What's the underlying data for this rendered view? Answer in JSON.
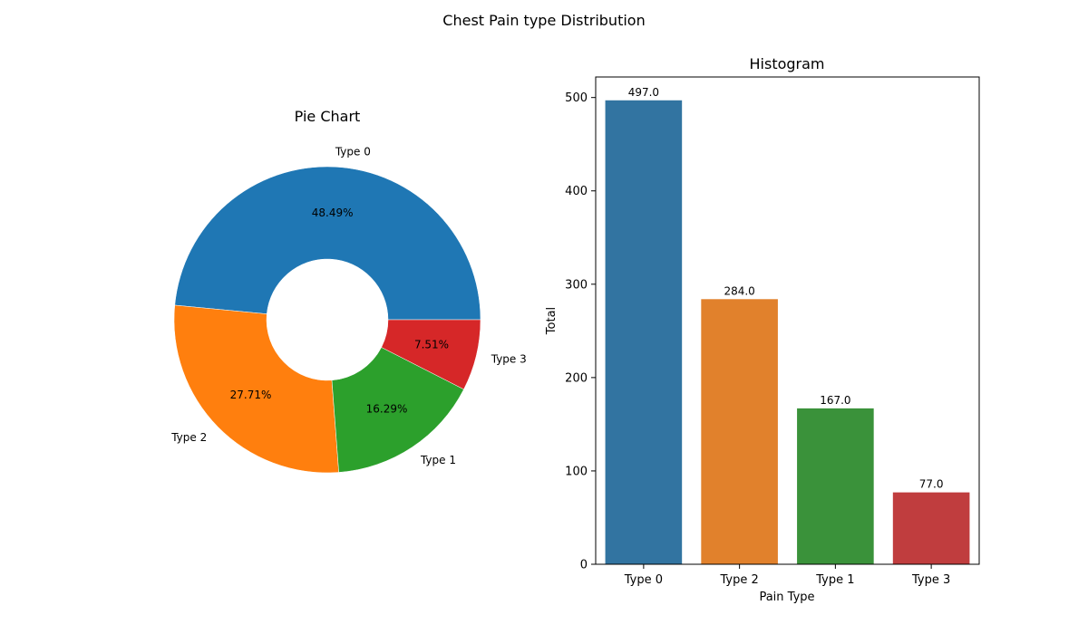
{
  "figure": {
    "title": "Chest Pain type Distribution"
  },
  "chart_data": [
    {
      "type": "pie",
      "title": "Pie Chart",
      "donut": true,
      "labels": [
        "Type 0",
        "Type 2",
        "Type 1",
        "Type 3"
      ],
      "values": [
        497,
        284,
        167,
        77
      ],
      "percent_labels": [
        "48.49%",
        "27.71%",
        "16.29%",
        "7.51%"
      ],
      "colors": [
        "#1f77b4",
        "#ff7f0e",
        "#2ca02c",
        "#d62728"
      ]
    },
    {
      "type": "bar",
      "title": "Histogram",
      "categories": [
        "Type 0",
        "Type 2",
        "Type 1",
        "Type 3"
      ],
      "values": [
        497,
        284,
        167,
        77
      ],
      "value_labels": [
        "497.0",
        "284.0",
        "167.0",
        "77.0"
      ],
      "colors": [
        "#3274a1",
        "#e1812c",
        "#3a923a",
        "#c03d3e"
      ],
      "xlabel": "Pain Type",
      "ylabel": "Total",
      "ylim": [
        0,
        522
      ],
      "yticks": [
        0,
        100,
        200,
        300,
        400,
        500
      ],
      "grid": false
    }
  ]
}
